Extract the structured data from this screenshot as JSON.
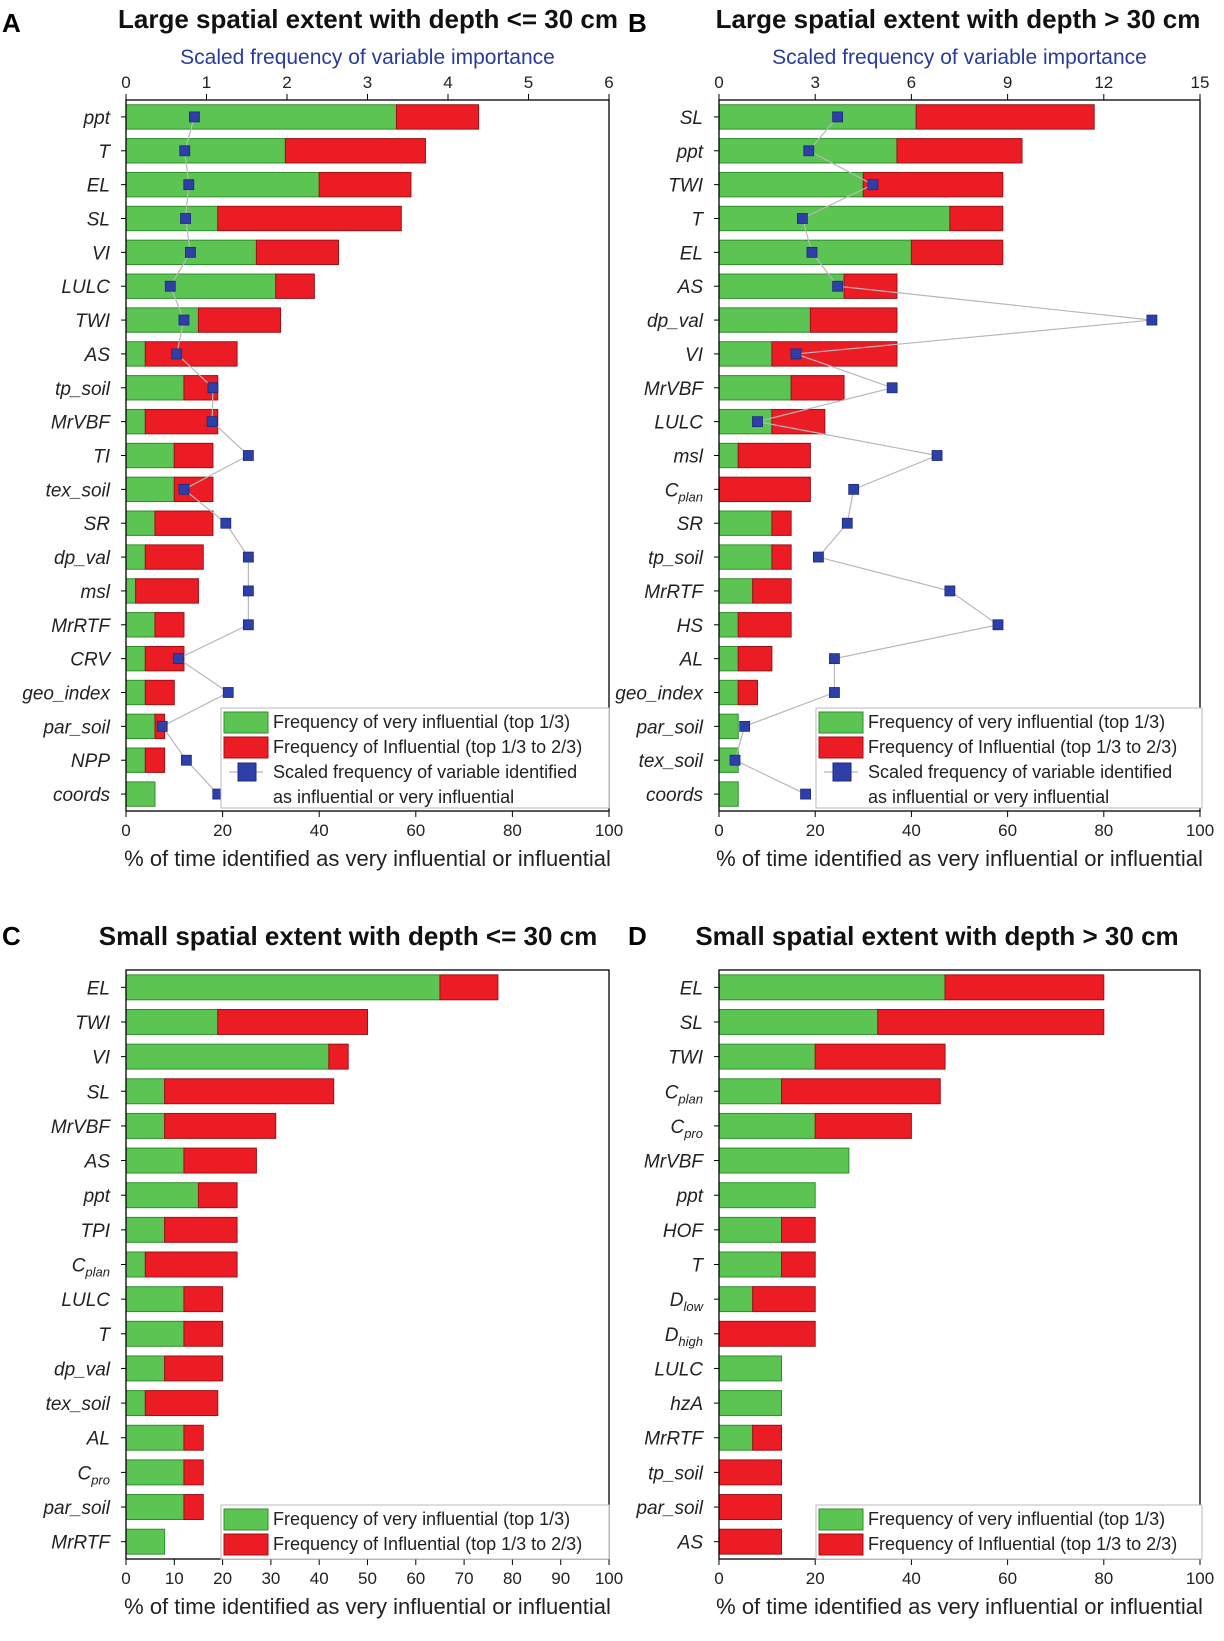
{
  "figure": {
    "colors": {
      "very_influential": "#5cc452",
      "influential": "#ec1c24",
      "scaled_marker": "#2e3fa8",
      "top_axis_text": "#2b3a9e",
      "line": "#b8b8b8"
    }
  },
  "chart_data": [
    {
      "panel_letter": "A",
      "type": "bar",
      "title": "Large spatial extent with depth <= 30 cm",
      "xlabel": "% of time identified as very influential or influential",
      "xlim": [
        0,
        100
      ],
      "x_ticks": [
        0,
        20,
        40,
        60,
        80,
        100
      ],
      "top_axis": {
        "label": "Scaled frequency of variable importance",
        "lim": [
          0,
          6
        ],
        "ticks": [
          0,
          1,
          2,
          3,
          4,
          5,
          6
        ]
      },
      "categories": [
        "ppt",
        "T",
        "EL",
        "SL",
        "VI",
        "LULC",
        "TWI",
        "AS",
        "tp_soil",
        "MrVBF",
        "TI",
        "tex_soil",
        "SR",
        "dp_val",
        "msl",
        "MrRTF",
        "CRV",
        "geo_index",
        "par_soil",
        "NPP",
        "coords"
      ],
      "category_labels": [
        {
          "main": "ppt",
          "sub": ""
        },
        {
          "main": "T",
          "sub": ""
        },
        {
          "main": "EL",
          "sub": ""
        },
        {
          "main": "SL",
          "sub": ""
        },
        {
          "main": "VI",
          "sub": ""
        },
        {
          "main": "LULC",
          "sub": ""
        },
        {
          "main": "TWI",
          "sub": ""
        },
        {
          "main": "AS",
          "sub": ""
        },
        {
          "main": "tp_soil",
          "sub": ""
        },
        {
          "main": "MrVBF",
          "sub": ""
        },
        {
          "main": "TI",
          "sub": ""
        },
        {
          "main": "tex_soil",
          "sub": ""
        },
        {
          "main": "SR",
          "sub": ""
        },
        {
          "main": "dp_val",
          "sub": ""
        },
        {
          "main": "msl",
          "sub": ""
        },
        {
          "main": "MrRTF",
          "sub": ""
        },
        {
          "main": "CRV",
          "sub": ""
        },
        {
          "main": "geo_index",
          "sub": ""
        },
        {
          "main": "par_soil",
          "sub": ""
        },
        {
          "main": "NPP",
          "sub": ""
        },
        {
          "main": "coords",
          "sub": ""
        }
      ],
      "series": [
        {
          "name": "Frequency of very influential (top 1/3)",
          "values": [
            56,
            33,
            40,
            19,
            27,
            31,
            15,
            4,
            12,
            4,
            10,
            10,
            6,
            4,
            2,
            6,
            4,
            4,
            6,
            4,
            6
          ]
        },
        {
          "name": "Frequency of Influential (top 1/3 to 2/3)",
          "values": [
            17,
            29,
            19,
            38,
            17,
            8,
            17,
            19,
            7,
            15,
            8,
            8,
            12,
            12,
            13,
            6,
            8,
            6,
            2,
            4,
            0
          ]
        }
      ],
      "scaled": {
        "name": "Scaled frequency of variable identified as influential or very influential",
        "values": [
          0.85,
          0.73,
          0.78,
          0.74,
          0.8,
          0.55,
          0.72,
          0.63,
          1.08,
          1.07,
          1.52,
          0.72,
          1.24,
          1.52,
          1.52,
          1.52,
          0.65,
          1.27,
          0.45,
          0.75,
          1.14
        ]
      },
      "legend": [
        {
          "text": "Frequency of very influential (top 1/3)"
        },
        {
          "text": "Frequency of Influential (top 1/3 to 2/3)"
        },
        {
          "text": "Scaled frequency of variable identified"
        },
        {
          "text": "as influential or very influential"
        }
      ]
    },
    {
      "panel_letter": "B",
      "type": "bar",
      "title": "Large spatial extent with depth > 30 cm",
      "xlabel": "% of time identified as very influential or influential",
      "xlim": [
        0,
        100
      ],
      "x_ticks": [
        0,
        20,
        40,
        60,
        80,
        100
      ],
      "top_axis": {
        "label": "Scaled frequency of variable importance",
        "lim": [
          0,
          15
        ],
        "ticks": [
          0,
          3,
          6,
          9,
          12,
          15
        ]
      },
      "categories": [
        "SL",
        "ppt",
        "TWI",
        "T",
        "EL",
        "AS",
        "dp_val",
        "VI",
        "MrVBF",
        "LULC",
        "msl",
        "Cplan",
        "SR",
        "tp_soil",
        "MrRTF",
        "HS",
        "AL",
        "geo_index",
        "par_soil",
        "tex_soil",
        "coords"
      ],
      "category_labels": [
        {
          "main": "SL",
          "sub": ""
        },
        {
          "main": "ppt",
          "sub": ""
        },
        {
          "main": "TWI",
          "sub": ""
        },
        {
          "main": "T",
          "sub": ""
        },
        {
          "main": "EL",
          "sub": ""
        },
        {
          "main": "AS",
          "sub": ""
        },
        {
          "main": "dp_val",
          "sub": ""
        },
        {
          "main": "VI",
          "sub": ""
        },
        {
          "main": "MrVBF",
          "sub": ""
        },
        {
          "main": "LULC",
          "sub": ""
        },
        {
          "main": "msl",
          "sub": ""
        },
        {
          "main": "C",
          "sub": "plan"
        },
        {
          "main": "SR",
          "sub": ""
        },
        {
          "main": "tp_soil",
          "sub": ""
        },
        {
          "main": "MrRTF",
          "sub": ""
        },
        {
          "main": "HS",
          "sub": ""
        },
        {
          "main": "AL",
          "sub": ""
        },
        {
          "main": "geo_index",
          "sub": ""
        },
        {
          "main": "par_soil",
          "sub": ""
        },
        {
          "main": "tex_soil",
          "sub": ""
        },
        {
          "main": "coords",
          "sub": ""
        }
      ],
      "series": [
        {
          "name": "Frequency of very influential (top 1/3)",
          "values": [
            41,
            37,
            30,
            48,
            40,
            26,
            19,
            11,
            15,
            11,
            4,
            0,
            11,
            11,
            7,
            4,
            4,
            4,
            4,
            4,
            4
          ]
        },
        {
          "name": "Frequency of Influential (top 1/3 to 2/3)",
          "values": [
            37,
            26,
            29,
            11,
            19,
            11,
            18,
            26,
            11,
            11,
            15,
            19,
            4,
            4,
            8,
            11,
            7,
            4,
            0,
            0,
            0
          ]
        }
      ],
      "scaled": {
        "name": "Scaled frequency of variable identified as influential or very influential",
        "values": [
          3.7,
          2.8,
          4.8,
          2.6,
          2.9,
          3.7,
          13.5,
          2.4,
          5.4,
          1.2,
          6.8,
          4.2,
          4.0,
          3.1,
          7.2,
          8.7,
          3.6,
          3.6,
          0.8,
          0.5,
          2.7
        ]
      },
      "legend": [
        {
          "text": "Frequency of very influential (top 1/3)"
        },
        {
          "text": "Frequency of Influential (top 1/3 to 2/3)"
        },
        {
          "text": "Scaled frequency of variable identified"
        },
        {
          "text": "as influential or very influential"
        }
      ]
    },
    {
      "panel_letter": "C",
      "type": "bar",
      "title": "Small spatial extent with depth <= 30 cm",
      "xlabel": "% of time identified as very influential or influential",
      "xlim": [
        0,
        100
      ],
      "x_ticks": [
        0,
        10,
        20,
        30,
        40,
        50,
        60,
        70,
        80,
        90,
        100
      ],
      "categories": [
        "EL",
        "TWI",
        "VI",
        "SL",
        "MrVBF",
        "AS",
        "ppt",
        "TPI",
        "Cplan",
        "LULC",
        "T",
        "dp_val",
        "tex_soil",
        "AL",
        "Cpro",
        "par_soil",
        "MrRTF"
      ],
      "category_labels": [
        {
          "main": "EL",
          "sub": ""
        },
        {
          "main": "TWI",
          "sub": ""
        },
        {
          "main": "VI",
          "sub": ""
        },
        {
          "main": "SL",
          "sub": ""
        },
        {
          "main": "MrVBF",
          "sub": ""
        },
        {
          "main": "AS",
          "sub": ""
        },
        {
          "main": "ppt",
          "sub": ""
        },
        {
          "main": "TPI",
          "sub": ""
        },
        {
          "main": "C",
          "sub": "plan"
        },
        {
          "main": "LULC",
          "sub": ""
        },
        {
          "main": "T",
          "sub": ""
        },
        {
          "main": "dp_val",
          "sub": ""
        },
        {
          "main": "tex_soil",
          "sub": ""
        },
        {
          "main": "AL",
          "sub": ""
        },
        {
          "main": "C",
          "sub": "pro"
        },
        {
          "main": "par_soil",
          "sub": ""
        },
        {
          "main": "MrRTF",
          "sub": ""
        }
      ],
      "series": [
        {
          "name": "Frequency of very influential (top 1/3)",
          "values": [
            65,
            19,
            42,
            8,
            8,
            12,
            15,
            8,
            4,
            12,
            12,
            8,
            4,
            12,
            12,
            12,
            8
          ]
        },
        {
          "name": "Frequency of Influential (top 1/3 to 2/3)",
          "values": [
            12,
            31,
            4,
            35,
            23,
            15,
            8,
            15,
            19,
            8,
            8,
            12,
            15,
            4,
            4,
            4,
            0
          ]
        }
      ],
      "legend": [
        {
          "text": "Frequency of very influential (top 1/3)"
        },
        {
          "text": "Frequency of Influential (top 1/3 to 2/3)"
        }
      ]
    },
    {
      "panel_letter": "D",
      "type": "bar",
      "title": "Small spatial extent with depth > 30 cm",
      "xlabel": "% of time identified as very influential or influential",
      "xlim": [
        0,
        100
      ],
      "x_ticks": [
        0,
        20,
        40,
        60,
        80,
        100
      ],
      "categories": [
        "EL",
        "SL",
        "TWI",
        "Cplan",
        "Cpro",
        "MrVBF",
        "ppt",
        "HOF",
        "T",
        "Dlow",
        "Dhigh",
        "LULC",
        "hzA",
        "MrRTF",
        "tp_soil",
        "par_soil",
        "AS"
      ],
      "category_labels": [
        {
          "main": "EL",
          "sub": ""
        },
        {
          "main": "SL",
          "sub": ""
        },
        {
          "main": "TWI",
          "sub": ""
        },
        {
          "main": "C",
          "sub": "plan"
        },
        {
          "main": "C",
          "sub": "pro"
        },
        {
          "main": "MrVBF",
          "sub": ""
        },
        {
          "main": "ppt",
          "sub": ""
        },
        {
          "main": "HOF",
          "sub": ""
        },
        {
          "main": "T",
          "sub": ""
        },
        {
          "main": "D",
          "sub": "low"
        },
        {
          "main": "D",
          "sub": "high"
        },
        {
          "main": "LULC",
          "sub": ""
        },
        {
          "main": "hzA",
          "sub": ""
        },
        {
          "main": "MrRTF",
          "sub": ""
        },
        {
          "main": "tp_soil",
          "sub": ""
        },
        {
          "main": "par_soil",
          "sub": ""
        },
        {
          "main": "AS",
          "sub": ""
        }
      ],
      "series": [
        {
          "name": "Frequency of very influential (top 1/3)",
          "values": [
            47,
            33,
            20,
            13,
            20,
            27,
            20,
            13,
            13,
            7,
            0,
            13,
            13,
            7,
            0,
            0,
            0
          ]
        },
        {
          "name": "Frequency of Influential (top 1/3 to 2/3)",
          "values": [
            33,
            47,
            27,
            33,
            20,
            0,
            0,
            7,
            7,
            13,
            20,
            0,
            0,
            6,
            13,
            13,
            13
          ]
        }
      ],
      "legend": [
        {
          "text": "Frequency of very influential (top 1/3)"
        },
        {
          "text": "Frequency of Influential (top 1/3 to 2/3)"
        }
      ]
    }
  ]
}
